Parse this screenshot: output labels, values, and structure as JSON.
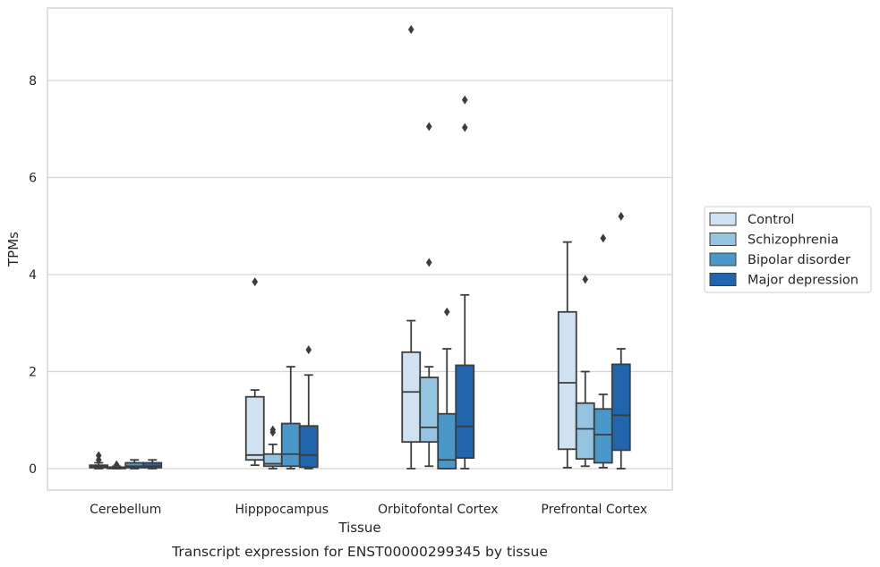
{
  "chart_data": {
    "type": "boxplot",
    "caption": "Transcript expression for ENST00000299345 by tissue",
    "xlabel": "Tissue",
    "ylabel": "TPMs",
    "ylim": [
      -0.45,
      9.6
    ],
    "yticks": [
      0,
      2,
      4,
      6,
      8
    ],
    "grid": "horizontal",
    "legend_position": "right",
    "categories": [
      "Cerebellum",
      "Hipppocampus",
      "Orbitofontal Cortex",
      "Prefrontal Cortex"
    ],
    "series": [
      {
        "name": "Control",
        "color": "#d0e1f2",
        "boxes": [
          {
            "whislo": 0.0,
            "q1": 0.02,
            "med": 0.04,
            "q3": 0.07,
            "whishi": 0.12,
            "fliers": [
              0.18,
              0.27
            ]
          },
          {
            "whislo": 0.07,
            "q1": 0.18,
            "med": 0.28,
            "q3": 1.48,
            "whishi": 1.62,
            "fliers": [
              3.85
            ]
          },
          {
            "whislo": 0.0,
            "q1": 0.55,
            "med": 1.58,
            "q3": 2.4,
            "whishi": 3.05,
            "fliers": [
              9.05
            ]
          },
          {
            "whislo": 0.02,
            "q1": 0.4,
            "med": 1.77,
            "q3": 3.23,
            "whishi": 4.67,
            "fliers": []
          }
        ]
      },
      {
        "name": "Schizophrenia",
        "color": "#94c4df",
        "boxes": [
          {
            "whislo": 0.0,
            "q1": 0.01,
            "med": 0.02,
            "q3": 0.03,
            "whishi": 0.05,
            "fliers": [
              0.08
            ]
          },
          {
            "whislo": 0.0,
            "q1": 0.05,
            "med": 0.1,
            "q3": 0.3,
            "whishi": 0.5,
            "fliers": [
              0.75,
              0.8
            ]
          },
          {
            "whislo": 0.05,
            "q1": 0.55,
            "med": 0.85,
            "q3": 1.88,
            "whishi": 2.1,
            "fliers": [
              4.25,
              7.05
            ]
          },
          {
            "whislo": 0.05,
            "q1": 0.2,
            "med": 0.82,
            "q3": 1.35,
            "whishi": 2.0,
            "fliers": [
              3.9
            ]
          }
        ]
      },
      {
        "name": "Bipolar disorder",
        "color": "#4a98c9",
        "boxes": [
          {
            "whislo": 0.0,
            "q1": 0.02,
            "med": 0.05,
            "q3": 0.12,
            "whishi": 0.18,
            "fliers": []
          },
          {
            "whislo": 0.0,
            "q1": 0.05,
            "med": 0.3,
            "q3": 0.93,
            "whishi": 2.1,
            "fliers": []
          },
          {
            "whislo": 0.0,
            "q1": 0.0,
            "med": 0.18,
            "q3": 1.13,
            "whishi": 2.47,
            "fliers": [
              3.23
            ]
          },
          {
            "whislo": 0.02,
            "q1": 0.12,
            "med": 0.7,
            "q3": 1.23,
            "whishi": 1.53,
            "fliers": [
              4.75
            ]
          }
        ]
      },
      {
        "name": "Major depression",
        "color": "#2166ac",
        "boxes": [
          {
            "whislo": 0.0,
            "q1": 0.02,
            "med": 0.05,
            "q3": 0.12,
            "whishi": 0.18,
            "fliers": []
          },
          {
            "whislo": 0.0,
            "q1": 0.03,
            "med": 0.28,
            "q3": 0.88,
            "whishi": 1.93,
            "fliers": [
              2.45
            ]
          },
          {
            "whislo": 0.0,
            "q1": 0.22,
            "med": 0.87,
            "q3": 2.13,
            "whishi": 3.58,
            "fliers": [
              7.03,
              7.6
            ]
          },
          {
            "whislo": 0.0,
            "q1": 0.38,
            "med": 1.1,
            "q3": 2.15,
            "whishi": 2.47,
            "fliers": [
              5.2
            ]
          }
        ]
      }
    ]
  }
}
